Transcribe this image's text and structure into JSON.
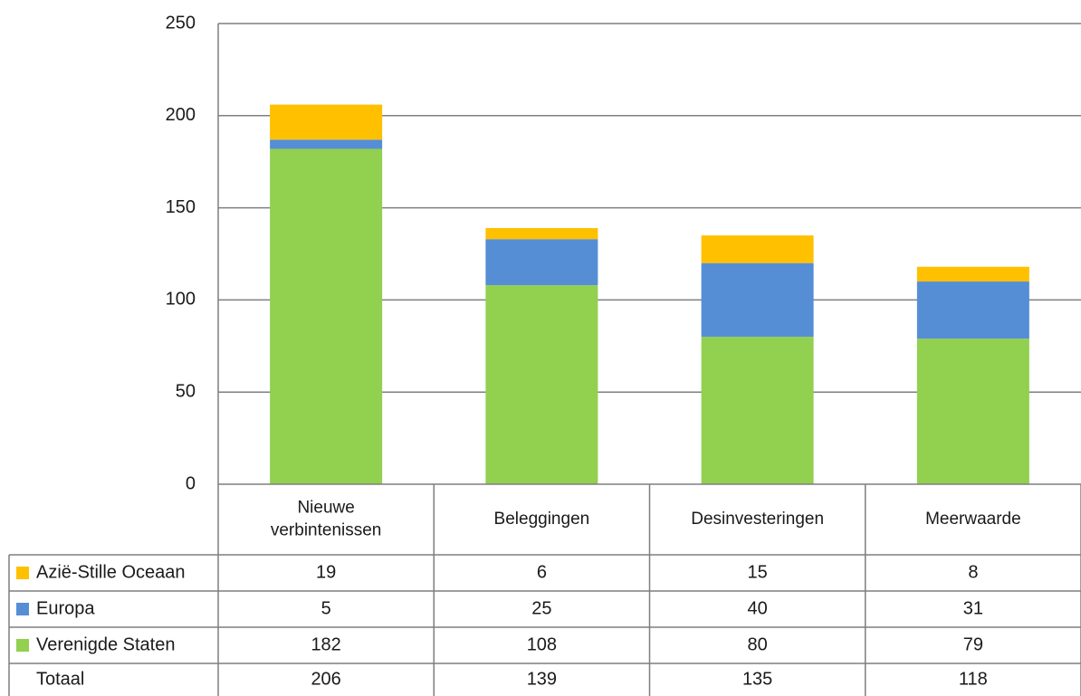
{
  "chart_data": {
    "type": "bar",
    "stacked": true,
    "title": "",
    "xlabel": "",
    "ylabel": "",
    "ylim": [
      0,
      250
    ],
    "yticks": [
      0,
      50,
      100,
      150,
      200,
      250
    ],
    "grid": true,
    "legend": "data-table-left",
    "categories": [
      [
        "Nieuwe",
        "verbintenissen"
      ],
      [
        "Beleggingen"
      ],
      [
        "Desinvesteringen"
      ],
      [
        "Meerwaarde"
      ]
    ],
    "series": [
      {
        "name": "Verenigde Staten",
        "color": "#92d050",
        "values": [
          182,
          108,
          80,
          79
        ]
      },
      {
        "name": "Europa",
        "color": "#558ed5",
        "values": [
          5,
          25,
          40,
          31
        ]
      },
      {
        "name": "Azië-Stille Oceaan",
        "color": "#ffc000",
        "values": [
          19,
          6,
          15,
          8
        ]
      }
    ],
    "table_rows": [
      {
        "label": "Azië-Stille Oceaan",
        "color": "#ffc000",
        "values": [
          "19",
          "6",
          "15",
          "8"
        ]
      },
      {
        "label": "Europa",
        "color": "#558ed5",
        "values": [
          "5",
          "25",
          "40",
          "31"
        ]
      },
      {
        "label": "Verenigde Staten",
        "color": "#92d050",
        "values": [
          "182",
          "108",
          "80",
          "79"
        ]
      },
      {
        "label": "Totaal",
        "color": "",
        "values": [
          "206",
          "139",
          "135",
          "118"
        ]
      }
    ]
  }
}
